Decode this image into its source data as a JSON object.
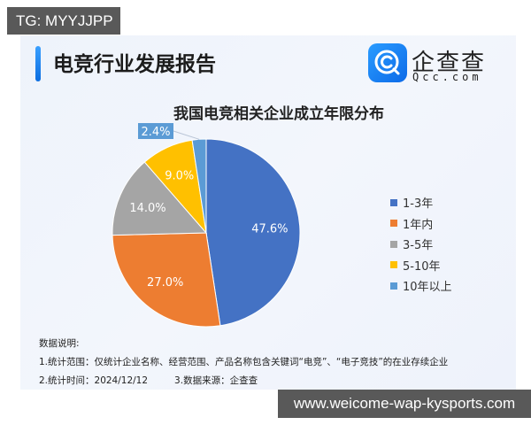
{
  "watermarks": {
    "top_left": "TG: MYYJJPP",
    "bottom_right": "www.weicome-wap-kysports.com"
  },
  "header": {
    "report_title": "电竞行业发展报告",
    "brand_name": "企查查",
    "brand_domain": "Qcc.com"
  },
  "notes": {
    "heading": "数据说明:",
    "line1": "1.统计范围：仅统计企业名称、经营范围、产品名称包含关键词“电竞”、“电子竞技”的在业存续企业",
    "line2a": "2.统计时间：2024/12/12",
    "line2b": "3.数据来源：企查查"
  },
  "colors": {
    "1-3年": "#4472c4",
    "1年内": "#ed7d31",
    "3-5年": "#a5a5a5",
    "5-10年": "#ffc000",
    "10年以上": "#5b9bd5"
  },
  "chart_data": {
    "type": "pie",
    "title": "我国电竞相关企业成立年限分布",
    "categories": [
      "1-3年",
      "1年内",
      "3-5年",
      "5-10年",
      "10年以上"
    ],
    "values": [
      47.6,
      27.0,
      14.0,
      9.0,
      2.4
    ],
    "labels": [
      "47.6%",
      "27.0%",
      "14.0%",
      "9.0%",
      "2.4%"
    ],
    "unit": "%",
    "legend_position": "right",
    "start_angle": "12 o'clock, clockwise"
  },
  "legend": [
    {
      "label": "1-3年",
      "color": "#4472c4"
    },
    {
      "label": "1年内",
      "color": "#ed7d31"
    },
    {
      "label": "3-5年",
      "color": "#a5a5a5"
    },
    {
      "label": "5-10年",
      "color": "#ffc000"
    },
    {
      "label": "10年以上",
      "color": "#5b9bd5"
    }
  ]
}
